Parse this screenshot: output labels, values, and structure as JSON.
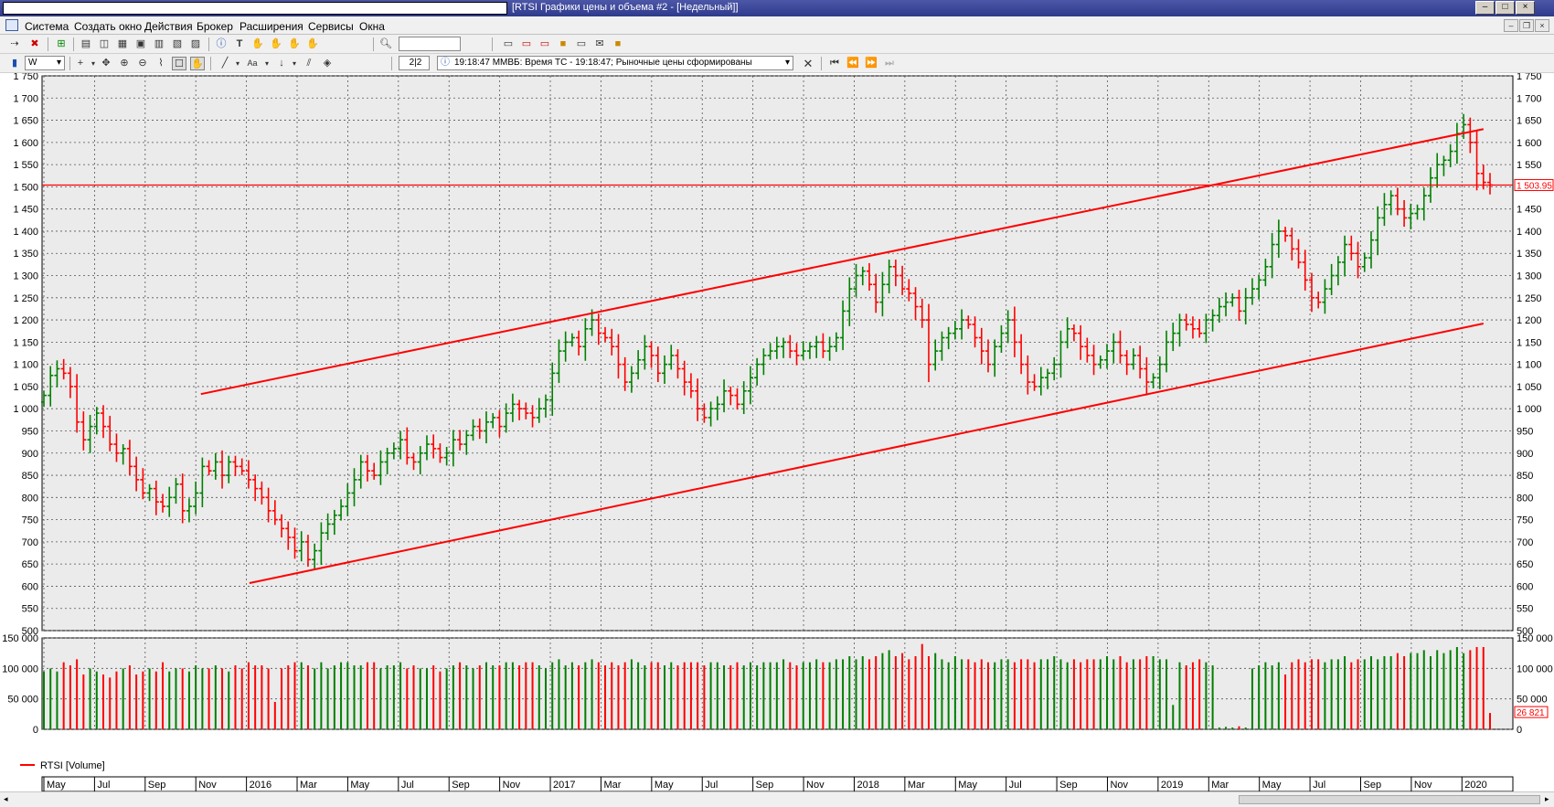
{
  "window": {
    "title": "[RTSI Графики цены и объема #2 - [Недельный]]",
    "controls": [
      "–",
      "□",
      "×"
    ]
  },
  "menu": [
    "Система",
    "Создать окно",
    "Действия",
    "Брокер",
    "Расширения",
    "Сервисы",
    "Окна"
  ],
  "mdi_controls": [
    "–",
    "❐",
    "×"
  ],
  "toolbar": {
    "search_value": "",
    "interval": "W",
    "page_indicator": "2|2",
    "status_message": "19:18:47  ММВБ: Время ТС - 19:18:47; Рыночные цены сформированы",
    "icons": [
      "connect-icon",
      "disconnect-icon",
      "new-window-icon",
      "quotes-icon",
      "chart-icon",
      "table-icon",
      "portfolio-icon",
      "orders-icon",
      "trades-icon",
      "info-icon",
      "text-icon",
      "hand-icon",
      "search-icon",
      "export-icon",
      "print-icon",
      "lock-icon",
      "mail-icon",
      "settings-icon"
    ]
  },
  "chart_data": [
    {
      "type": "ohlc",
      "series_name": "RTSI",
      "timeframe": "weekly",
      "ylim": [
        500,
        1750
      ],
      "y_ticks": [
        "1 750",
        "1 700",
        "1 650",
        "1 600",
        "1 550",
        "1 500",
        "1 450",
        "1 400",
        "1 350",
        "1 300",
        "1 250",
        "1 200",
        "1 150",
        "1 100",
        "1 050",
        "1 000",
        "950",
        "900",
        "850",
        "800",
        "750",
        "700",
        "650",
        "600",
        "550",
        "500"
      ],
      "x_labels": [
        "May",
        "Jul",
        "Sep",
        "Nov",
        "2016",
        "Mar",
        "May",
        "Jul",
        "Sep",
        "Nov",
        "2017",
        "Mar",
        "May",
        "Jul",
        "Sep",
        "Nov",
        "2018",
        "Mar",
        "May",
        "Jul",
        "Sep",
        "Nov",
        "2019",
        "Mar",
        "May",
        "Jul",
        "Sep",
        "Nov",
        "2020"
      ],
      "current_price_label": "1 503.95",
      "horizontal_level": 1503.95,
      "trend_channel": {
        "upper_line": [
          [
            0.108,
            1033
          ],
          [
            0.98,
            1630
          ]
        ],
        "lower_line": [
          [
            0.141,
            607
          ],
          [
            0.98,
            1192
          ]
        ]
      },
      "up_color": "#008000",
      "down_color": "#ff0000",
      "closes": [
        1030,
        1075,
        1090,
        1080,
        1050,
        970,
        930,
        960,
        990,
        960,
        920,
        900,
        910,
        870,
        840,
        810,
        820,
        790,
        780,
        800,
        830,
        770,
        780,
        810,
        870,
        860,
        880,
        850,
        880,
        870,
        860,
        840,
        820,
        800,
        770,
        750,
        730,
        710,
        680,
        700,
        660,
        680,
        720,
        740,
        760,
        780,
        810,
        840,
        880,
        860,
        850,
        880,
        900,
        910,
        930,
        890,
        880,
        900,
        920,
        910,
        890,
        900,
        930,
        920,
        940,
        960,
        950,
        970,
        980,
        960,
        990,
        1010,
        1000,
        990,
        980,
        1000,
        1020,
        1080,
        1130,
        1150,
        1160,
        1140,
        1180,
        1200,
        1170,
        1160,
        1140,
        1100,
        1060,
        1080,
        1110,
        1140,
        1120,
        1080,
        1100,
        1120,
        1090,
        1060,
        1040,
        1000,
        980,
        1000,
        1010,
        1040,
        1030,
        1010,
        1040,
        1070,
        1100,
        1120,
        1130,
        1140,
        1150,
        1130,
        1120,
        1130,
        1140,
        1150,
        1130,
        1140,
        1160,
        1220,
        1270,
        1300,
        1310,
        1280,
        1240,
        1280,
        1320,
        1300,
        1270,
        1260,
        1230,
        1200,
        1100,
        1130,
        1160,
        1170,
        1180,
        1200,
        1190,
        1160,
        1130,
        1100,
        1140,
        1170,
        1200,
        1150,
        1100,
        1060,
        1050,
        1070,
        1080,
        1100,
        1150,
        1180,
        1170,
        1140,
        1120,
        1100,
        1110,
        1130,
        1150,
        1120,
        1100,
        1120,
        1090,
        1060,
        1070,
        1100,
        1150,
        1170,
        1200,
        1190,
        1180,
        1170,
        1200,
        1210,
        1230,
        1240,
        1250,
        1220,
        1250,
        1270,
        1290,
        1320,
        1370,
        1400,
        1390,
        1360,
        1330,
        1290,
        1250,
        1240,
        1270,
        1300,
        1330,
        1370,
        1350,
        1320,
        1340,
        1380,
        1430,
        1460,
        1480,
        1450,
        1430,
        1440,
        1450,
        1480,
        1520,
        1550,
        1560,
        1580,
        1620,
        1640,
        1600,
        1530,
        1510,
        1503.95
      ],
      "volume_panel": {
        "title": "RTSI [Volume]",
        "ylim": [
          0,
          150000
        ],
        "y_ticks": [
          "150 000",
          "100 000",
          "50 000",
          "0"
        ],
        "current_volume_label": "26 821",
        "volumes": [
          95000,
          100000,
          95000,
          110000,
          105000,
          115000,
          90000,
          100000,
          95000,
          90000,
          85000,
          95000,
          100000,
          105000,
          90000,
          95000,
          100000,
          95000,
          110000,
          95000,
          100000,
          100000,
          95000,
          105000,
          100000,
          100000,
          105000,
          100000,
          95000,
          105000,
          100000,
          110000,
          105000,
          105000,
          100000,
          45000,
          100000,
          105000,
          110000,
          110000,
          105000,
          100000,
          110000,
          100000,
          105000,
          110000,
          110000,
          105000,
          105000,
          110000,
          110000,
          100000,
          105000,
          105000,
          110000,
          100000,
          105000,
          100000,
          100000,
          105000,
          95000,
          100000,
          105000,
          110000,
          105000,
          100000,
          105000,
          110000,
          105000,
          105000,
          110000,
          110000,
          105000,
          110000,
          110000,
          105000,
          100000,
          110000,
          115000,
          105000,
          110000,
          105000,
          110000,
          115000,
          110000,
          105000,
          110000,
          105000,
          110000,
          115000,
          110000,
          105000,
          110000,
          110000,
          105000,
          110000,
          105000,
          110000,
          110000,
          110000,
          105000,
          110000,
          110000,
          105000,
          105000,
          110000,
          105000,
          110000,
          105000,
          110000,
          110000,
          110000,
          115000,
          110000,
          105000,
          110000,
          110000,
          115000,
          110000,
          110000,
          115000,
          115000,
          120000,
          115000,
          120000,
          115000,
          120000,
          125000,
          130000,
          120000,
          125000,
          115000,
          120000,
          140000,
          120000,
          125000,
          115000,
          110000,
          120000,
          115000,
          115000,
          110000,
          115000,
          110000,
          110000,
          115000,
          115000,
          110000,
          115000,
          115000,
          110000,
          115000,
          115000,
          120000,
          115000,
          110000,
          115000,
          110000,
          115000,
          115000,
          115000,
          120000,
          115000,
          120000,
          110000,
          115000,
          115000,
          120000,
          120000,
          115000,
          115000,
          40000,
          110000,
          105000,
          110000,
          115000,
          110000,
          105000,
          3000,
          4000,
          3000,
          5000,
          3000,
          100000,
          105000,
          110000,
          105000,
          110000,
          90000,
          110000,
          115000,
          110000,
          115000,
          115000,
          110000,
          115000,
          115000,
          120000,
          110000,
          115000,
          115000,
          120000,
          115000,
          120000,
          120000,
          125000,
          120000,
          125000,
          125000,
          130000,
          120000,
          130000,
          125000,
          130000,
          135000,
          125000,
          130000,
          135000,
          135000,
          26821
        ]
      }
    }
  ]
}
